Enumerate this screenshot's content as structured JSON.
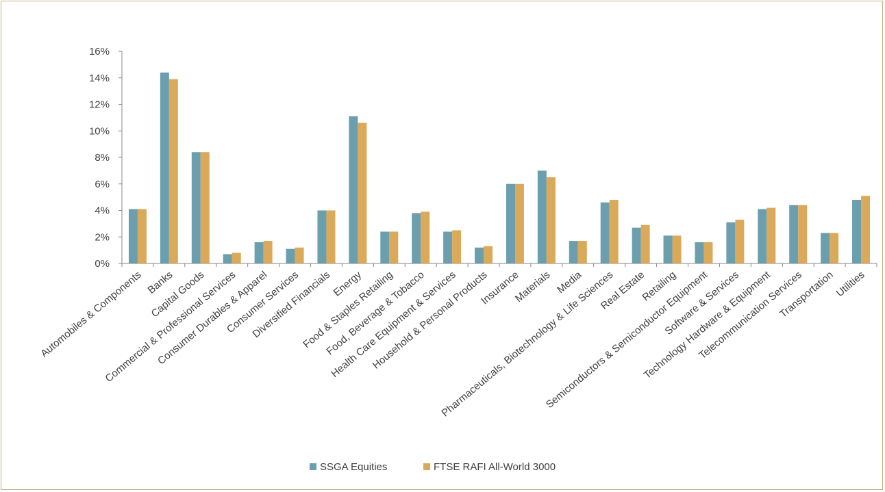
{
  "chart_data": {
    "type": "bar",
    "title": "",
    "xlabel": "",
    "ylabel": "",
    "ylim": [
      0,
      16
    ],
    "yticks": [
      0,
      2,
      4,
      6,
      8,
      10,
      12,
      14,
      16
    ],
    "ytick_labels": [
      "0%",
      "2%",
      "4%",
      "6%",
      "8%",
      "10%",
      "12%",
      "14%",
      "16%"
    ],
    "grid": false,
    "legend_position": "bottom",
    "categories": [
      "Automobiles & Components",
      "Banks",
      "Capital Goods",
      "Commercial  & Professional Services",
      "Consumer Durables & Apparel",
      "Consumer Services",
      "Diversified Financials",
      "Energy",
      "Food & Staples Retailing",
      "Food, Beverage & Tobacco",
      "Health Care Equipment & Services",
      "Household & Personal Products",
      "Insurance",
      "Materials",
      "Media",
      "Pharmaceuticals, Biotechnology & Life Sciences",
      "Real Estate",
      "Retailing",
      "Semiconductors & Semiconductor Equipment",
      "Software & Services",
      "Technology Hardware & Equipment",
      "Telecommunication Services",
      "Transportation",
      "Utilities"
    ],
    "series": [
      {
        "name": "SSGA Equities",
        "color": "#6b9fae",
        "values": [
          4.1,
          14.4,
          8.4,
          0.7,
          1.6,
          1.1,
          4.0,
          11.1,
          2.4,
          3.8,
          2.4,
          1.2,
          6.0,
          7.0,
          1.7,
          4.6,
          2.7,
          2.1,
          1.6,
          3.1,
          4.1,
          4.4,
          2.3,
          4.8
        ]
      },
      {
        "name": "FTSE RAFI All-World 3000",
        "color": "#dba95a",
        "values": [
          4.1,
          13.9,
          8.4,
          0.8,
          1.7,
          1.2,
          4.0,
          10.6,
          2.4,
          3.9,
          2.5,
          1.3,
          6.0,
          6.5,
          1.7,
          4.8,
          2.9,
          2.1,
          1.6,
          3.3,
          4.2,
          4.4,
          2.3,
          5.1
        ]
      }
    ]
  }
}
